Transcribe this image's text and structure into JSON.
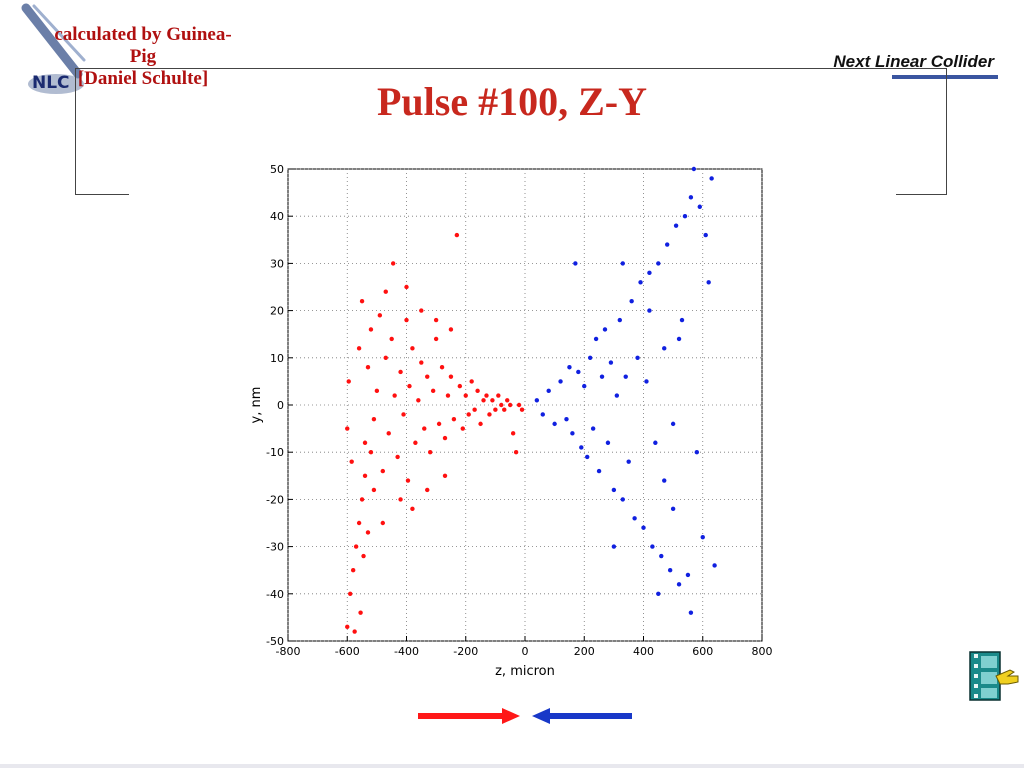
{
  "header": {
    "credit_lines": [
      "calculated by Guinea-",
      "Pig",
      "[Daniel Schulte]"
    ],
    "brand": "Next Linear Collider",
    "logo_text": "NLC",
    "title": "Pulse #100, Z-Y"
  },
  "icons": {
    "logo": "nlc-logo-icon",
    "film": "film-strip-hand-icon",
    "arrows": "colliding-beams-arrows-icon"
  },
  "colors": {
    "title": "#c8281e",
    "credit": "#b01010",
    "series_red": "#ff1010",
    "series_blue": "#1020e0",
    "arrow_red": "#ff1818",
    "arrow_blue": "#1838c8"
  },
  "chart_data": {
    "type": "scatter",
    "title": "",
    "xlabel": "z, micron",
    "ylabel": "y, nm",
    "xlim": [
      -800,
      800
    ],
    "ylim": [
      -50,
      50
    ],
    "xticks": [
      -800,
      -600,
      -400,
      -200,
      0,
      200,
      400,
      600,
      800
    ],
    "yticks": [
      -50,
      -40,
      -30,
      -20,
      -10,
      0,
      10,
      20,
      30,
      40,
      50
    ],
    "grid": true,
    "series": [
      {
        "color": "#ff1010",
        "points": [
          [
            -600,
            -47
          ],
          [
            -590,
            -40
          ],
          [
            -580,
            -35
          ],
          [
            -575,
            -48
          ],
          [
            -570,
            -30
          ],
          [
            -560,
            -25
          ],
          [
            -555,
            -44
          ],
          [
            -550,
            -20
          ],
          [
            -545,
            -32
          ],
          [
            -540,
            -15
          ],
          [
            -530,
            -27
          ],
          [
            -520,
            -10
          ],
          [
            -510,
            -18
          ],
          [
            -600,
            -5
          ],
          [
            -595,
            5
          ],
          [
            -585,
            -12
          ],
          [
            -560,
            12
          ],
          [
            -550,
            22
          ],
          [
            -540,
            -8
          ],
          [
            -530,
            8
          ],
          [
            -520,
            16
          ],
          [
            -510,
            -3
          ],
          [
            -500,
            3
          ],
          [
            -490,
            19
          ],
          [
            -480,
            -14
          ],
          [
            -470,
            10
          ],
          [
            -460,
            -6
          ],
          [
            -450,
            14
          ],
          [
            -445,
            30
          ],
          [
            -440,
            2
          ],
          [
            -430,
            -11
          ],
          [
            -420,
            7
          ],
          [
            -410,
            -2
          ],
          [
            -400,
            18
          ],
          [
            -395,
            -16
          ],
          [
            -390,
            4
          ],
          [
            -380,
            12
          ],
          [
            -370,
            -8
          ],
          [
            -360,
            1
          ],
          [
            -350,
            9
          ],
          [
            -340,
            -5
          ],
          [
            -330,
            6
          ],
          [
            -320,
            -10
          ],
          [
            -310,
            3
          ],
          [
            -300,
            14
          ],
          [
            -290,
            -4
          ],
          [
            -280,
            8
          ],
          [
            -270,
            -7
          ],
          [
            -260,
            2
          ],
          [
            -250,
            6
          ],
          [
            -240,
            -3
          ],
          [
            -230,
            36
          ],
          [
            -220,
            4
          ],
          [
            -210,
            -5
          ],
          [
            -200,
            2
          ],
          [
            -190,
            -2
          ],
          [
            -180,
            5
          ],
          [
            -170,
            -1
          ],
          [
            -160,
            3
          ],
          [
            -150,
            -4
          ],
          [
            -140,
            1
          ],
          [
            -130,
            2
          ],
          [
            -120,
            -2
          ],
          [
            -110,
            1
          ],
          [
            -100,
            -1
          ],
          [
            -90,
            2
          ],
          [
            -80,
            0
          ],
          [
            -70,
            -1
          ],
          [
            -60,
            1
          ],
          [
            -50,
            0
          ],
          [
            -40,
            -6
          ],
          [
            -30,
            -10
          ],
          [
            -20,
            0
          ],
          [
            -10,
            -1
          ],
          [
            -420,
            -20
          ],
          [
            -400,
            25
          ],
          [
            -380,
            -22
          ],
          [
            -350,
            20
          ],
          [
            -330,
            -18
          ],
          [
            -300,
            18
          ],
          [
            -270,
            -15
          ],
          [
            -250,
            16
          ],
          [
            -480,
            -25
          ],
          [
            -470,
            24
          ]
        ]
      },
      {
        "color": "#1020e0",
        "points": [
          [
            40,
            1
          ],
          [
            60,
            -2
          ],
          [
            80,
            3
          ],
          [
            100,
            -4
          ],
          [
            120,
            5
          ],
          [
            140,
            -3
          ],
          [
            150,
            8
          ],
          [
            160,
            -6
          ],
          [
            170,
            30
          ],
          [
            180,
            7
          ],
          [
            190,
            -9
          ],
          [
            200,
            4
          ],
          [
            210,
            -11
          ],
          [
            220,
            10
          ],
          [
            230,
            -5
          ],
          [
            240,
            14
          ],
          [
            250,
            -14
          ],
          [
            260,
            6
          ],
          [
            270,
            16
          ],
          [
            280,
            -8
          ],
          [
            290,
            9
          ],
          [
            300,
            -18
          ],
          [
            310,
            2
          ],
          [
            320,
            18
          ],
          [
            330,
            -20
          ],
          [
            340,
            6
          ],
          [
            350,
            -12
          ],
          [
            360,
            22
          ],
          [
            370,
            -24
          ],
          [
            380,
            10
          ],
          [
            390,
            26
          ],
          [
            400,
            -26
          ],
          [
            410,
            5
          ],
          [
            420,
            28
          ],
          [
            430,
            -30
          ],
          [
            440,
            -8
          ],
          [
            450,
            30
          ],
          [
            460,
            -32
          ],
          [
            470,
            12
          ],
          [
            480,
            34
          ],
          [
            490,
            -35
          ],
          [
            500,
            -4
          ],
          [
            510,
            38
          ],
          [
            520,
            -38
          ],
          [
            530,
            18
          ],
          [
            540,
            40
          ],
          [
            550,
            -36
          ],
          [
            560,
            44
          ],
          [
            570,
            50
          ],
          [
            580,
            -10
          ],
          [
            590,
            42
          ],
          [
            600,
            -28
          ],
          [
            610,
            36
          ],
          [
            620,
            26
          ],
          [
            630,
            48
          ],
          [
            640,
            -34
          ],
          [
            300,
            -30
          ],
          [
            330,
            30
          ],
          [
            560,
            -44
          ],
          [
            450,
            -40
          ],
          [
            500,
            -22
          ],
          [
            520,
            14
          ],
          [
            470,
            -16
          ],
          [
            420,
            20
          ]
        ]
      }
    ]
  }
}
